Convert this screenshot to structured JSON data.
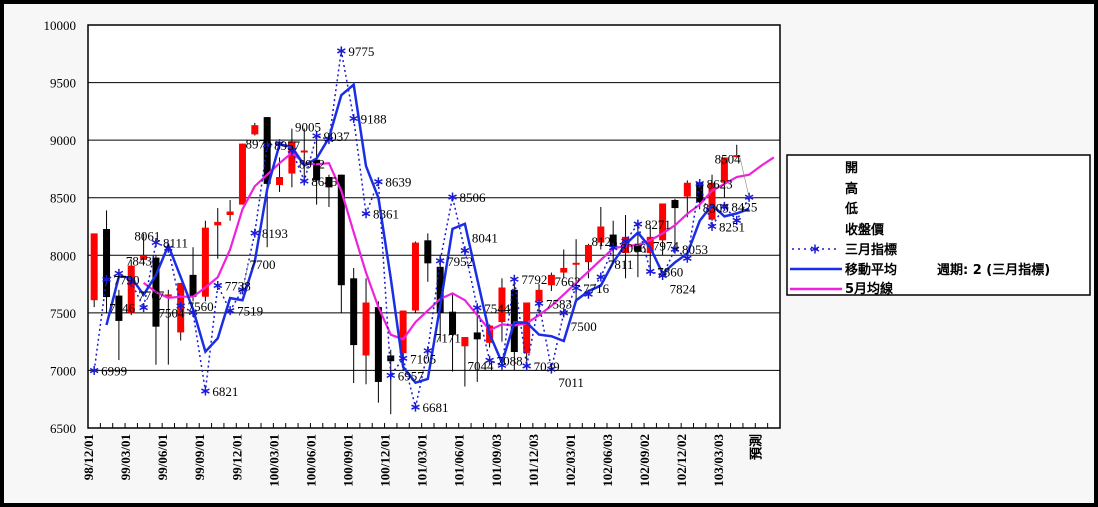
{
  "chart_data": {
    "type": "candlestick+line",
    "y_axis": {
      "min": 6500,
      "max": 10000,
      "step": 500,
      "tick_labels": [
        "6500",
        "7000",
        "7500",
        "8000",
        "8500",
        "9000",
        "9500",
        "10000"
      ]
    },
    "grid": true,
    "legend_position": "right",
    "x_tick_labels": [
      "98/12/01",
      "99/03/01",
      "99/06/01",
      "99/09/01",
      "99/12/01",
      "100/03/01",
      "100/06/01",
      "100/09/01",
      "100/12/01",
      "101/03/01",
      "101/06/01",
      "101/09/03",
      "101/12/03",
      "102/03/01",
      "102/06/03",
      "102/09/02",
      "102/12/02",
      "103/03/03",
      "預測"
    ],
    "category_count": 56,
    "legend": {
      "open": "開",
      "high": "高",
      "low": "低",
      "close": "收盤價",
      "indicator": "三月指標",
      "moving_average": "移動平均",
      "moving_average_note": "週期: 2 (三月指標)",
      "ma5": "5月均線"
    },
    "colors": {
      "up": "#ff0000",
      "down": "#000000",
      "indicator": "#1a1ad6",
      "moving_average": "#1a2ee6",
      "ma5": "#ee22dd"
    },
    "moving_average_period": 2,
    "ohlc": [
      [
        7610,
        8190,
        7550,
        8190
      ],
      [
        8228,
        8390,
        7500,
        7637
      ],
      [
        7650,
        7700,
        7090,
        7430
      ],
      [
        7500,
        7960,
        7480,
        7910
      ],
      [
        7960,
        8190,
        7940,
        8000
      ],
      [
        7980,
        8000,
        7050,
        7380
      ],
      [
        7650,
        7700,
        7050,
        7660
      ],
      [
        7330,
        7760,
        7260,
        7760
      ],
      [
        7830,
        8070,
        7600,
        7640
      ],
      [
        7640,
        8300,
        7600,
        8240
      ],
      [
        8260,
        8410,
        7970,
        8290
      ],
      [
        8350,
        8480,
        8300,
        8380
      ],
      [
        8440,
        8970,
        8440,
        8970
      ],
      [
        9050,
        9150,
        9040,
        9130
      ],
      [
        9200,
        9200,
        8070,
        8620
      ],
      [
        8610,
        8850,
        8550,
        8680
      ],
      [
        8710,
        9100,
        8590,
        8990
      ],
      [
        8900,
        9100,
        8680,
        8910
      ],
      [
        8830,
        9000,
        8440,
        8650
      ],
      [
        8680,
        8700,
        8420,
        8590
      ],
      [
        8700,
        8700,
        7500,
        7740
      ],
      [
        7800,
        7890,
        6890,
        7220
      ],
      [
        7130,
        7800,
        6880,
        7590
      ],
      [
        7550,
        7600,
        6720,
        6900
      ],
      [
        7130,
        7180,
        6620,
        7080
      ],
      [
        7150,
        7520,
        7000,
        7520
      ],
      [
        7520,
        8120,
        7500,
        8110
      ],
      [
        8130,
        8190,
        7770,
        7930
      ],
      [
        7900,
        8000,
        7250,
        7500
      ],
      [
        7510,
        7660,
        6990,
        7310
      ],
      [
        7210,
        7290,
        6860,
        7290
      ],
      [
        7330,
        7500,
        6900,
        7270
      ],
      [
        7240,
        7400,
        7200,
        7390
      ],
      [
        7420,
        7800,
        7250,
        7720
      ],
      [
        7700,
        7780,
        7000,
        7160
      ],
      [
        7150,
        7590,
        7080,
        7590
      ],
      [
        7600,
        7750,
        7500,
        7700
      ],
      [
        7740,
        7850,
        7690,
        7830
      ],
      [
        7850,
        8050,
        7800,
        7890
      ],
      [
        7930,
        8140,
        7600,
        7935
      ],
      [
        7940,
        8100,
        7800,
        8090
      ],
      [
        8110,
        8420,
        8050,
        8250
      ],
      [
        8180,
        8300,
        7950,
        8070
      ],
      [
        8020,
        8350,
        7800,
        8160
      ],
      [
        8100,
        8260,
        7810,
        8030
      ],
      [
        8020,
        8250,
        7850,
        8160
      ],
      [
        8130,
        8450,
        8000,
        8450
      ],
      [
        8480,
        8490,
        8020,
        8410
      ],
      [
        8510,
        8650,
        8330,
        8630
      ],
      [
        8630,
        8660,
        8400,
        8460
      ],
      [
        8310,
        8700,
        8300,
        8630
      ],
      [
        8630,
        8850,
        8500,
        8850
      ],
      [
        8860,
        8960,
        8850,
        8870
      ],
      null,
      null,
      null
    ],
    "indicator_3m": [
      6999,
      7790,
      7843,
      7767,
      7546,
      8111,
      8061,
      7560,
      7504,
      6821,
      7738,
      7519,
      7700,
      8193,
      8957,
      8970,
      8912,
      8645,
      9037,
      9005,
      9775,
      9188,
      8361,
      8639,
      6957,
      7105,
      6681,
      7171,
      7952,
      8506,
      8041,
      7544,
      7088,
      7044,
      7792,
      7039,
      7583,
      7011,
      7500,
      7716,
      7662,
      7811,
      8066,
      8123,
      8271,
      7860,
      7824,
      8053,
      7974,
      8623,
      8251,
      8425,
      8303,
      8504,
      null,
      null
    ],
    "ma5_month": [
      null,
      null,
      null,
      null,
      7760,
      7680,
      7630,
      7640,
      7640,
      7720,
      7810,
      8050,
      8400,
      8600,
      8700,
      8800,
      8890,
      8800,
      8790,
      8800,
      8560,
      8200,
      7850,
      7550,
      7310,
      7270,
      7420,
      7520,
      7620,
      7670,
      7610,
      7480,
      7350,
      7400,
      7390,
      7410,
      7480,
      7560,
      7660,
      7760,
      7860,
      7960,
      8060,
      8080,
      8090,
      8130,
      8190,
      8260,
      8360,
      8440,
      8560,
      8620,
      8680,
      8700,
      8780,
      8850
    ]
  }
}
